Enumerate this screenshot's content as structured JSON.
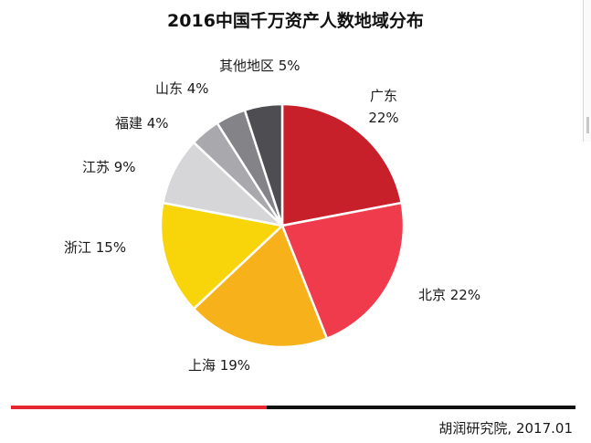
{
  "chart_data": {
    "type": "pie",
    "title": "2016中国千万资产人数地域分布",
    "slices": [
      {
        "label": "广东",
        "pct_text": "22%",
        "value": 22,
        "color": "#c8202a"
      },
      {
        "label": "北京",
        "pct_text": "22%",
        "value": 22,
        "color": "#ef3b4b"
      },
      {
        "label": "上海",
        "pct_text": "19%",
        "value": 19,
        "color": "#f7b21b"
      },
      {
        "label": "浙江",
        "pct_text": "15%",
        "value": 15,
        "color": "#f8d50a"
      },
      {
        "label": "江苏",
        "pct_text": "9%",
        "value": 9,
        "color": "#d6d6d8"
      },
      {
        "label": "福建",
        "pct_text": "4%",
        "value": 4,
        "color": "#a9a9ad"
      },
      {
        "label": "山东",
        "pct_text": "4%",
        "value": 4,
        "color": "#838388"
      },
      {
        "label": "其他地区",
        "pct_text": "5%",
        "value": 5,
        "color": "#4e4e52"
      }
    ]
  },
  "footer": {
    "source": "胡润研究院, 2017.01",
    "rule_colors": {
      "left": "#e3262f",
      "right": "#111111"
    }
  }
}
